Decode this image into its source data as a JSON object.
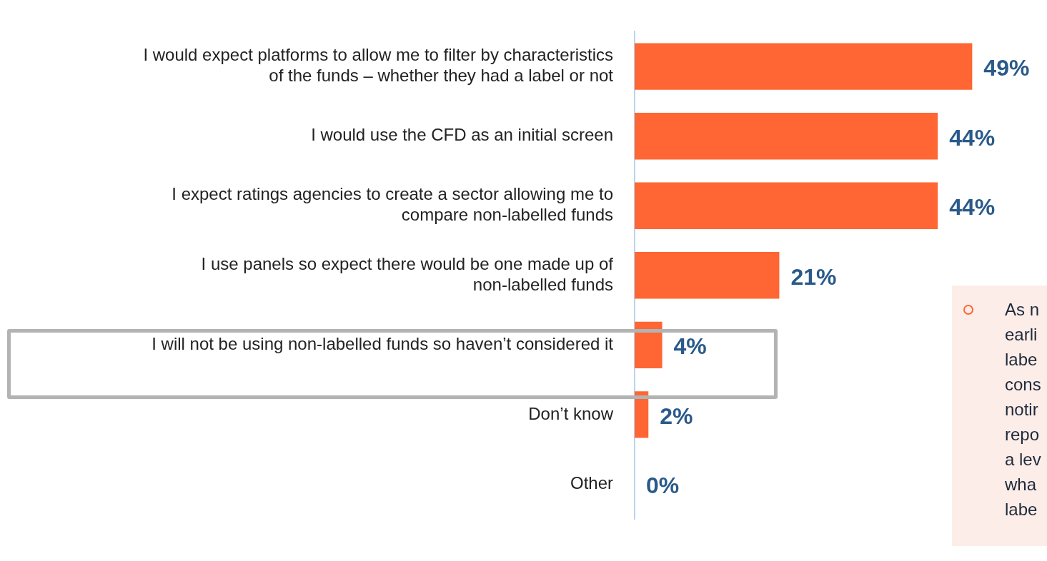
{
  "chart_data": {
    "type": "bar",
    "orientation": "horizontal",
    "categories": [
      "I would expect platforms to allow me to filter by characteristics of the funds – whether they had a label or not",
      "I would use the CFD as an initial screen",
      "I expect ratings agencies to create a sector allowing me to compare non-labelled funds",
      "I use panels so expect there would be one made up of non-labelled funds",
      "I will not be using non-labelled funds so haven’t considered it",
      "Don’t know",
      "Other"
    ],
    "values": [
      49,
      44,
      44,
      21,
      4,
      2,
      0
    ],
    "value_labels": [
      "49%",
      "44%",
      "44%",
      "21%",
      "4%",
      "2%",
      "0%"
    ],
    "color": "#ff6633",
    "legend": false,
    "annotations": [
      "As n\nearli\nlabe\ncons\nnotir\nrepo\na lev\nwha\nlabe"
    ]
  }
}
